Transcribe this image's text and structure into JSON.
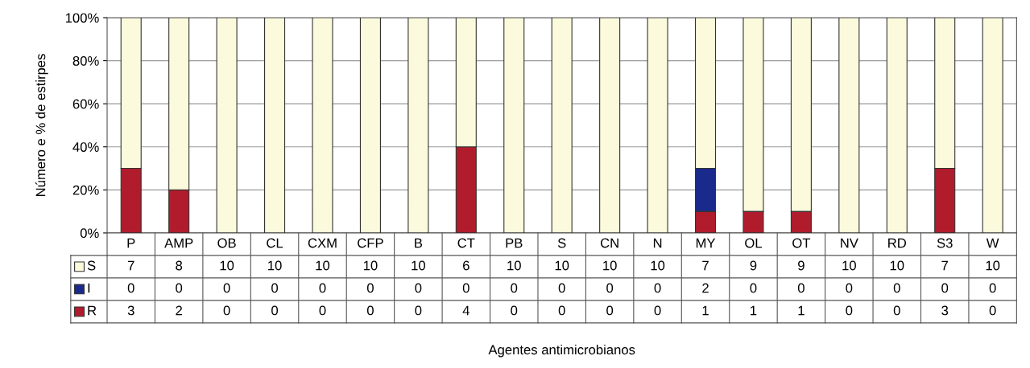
{
  "chart_data": {
    "type": "bar",
    "stacked": true,
    "ylabel": "Número e % de estirpes",
    "categories": [
      "P",
      "AMP",
      "OB",
      "CL",
      "CXM",
      "CFP",
      "B",
      "CT",
      "PB",
      "S",
      "CN",
      "N",
      "MY",
      "OL",
      "OT",
      "NV",
      "RD",
      "S3",
      "W"
    ],
    "series": [
      {
        "name": "R",
        "color": "#b01c2c",
        "values": [
          30,
          20,
          0,
          0,
          0,
          0,
          0,
          40,
          0,
          0,
          0,
          0,
          10,
          10,
          10,
          0,
          0,
          30,
          0
        ]
      },
      {
        "name": "I",
        "color": "#1a2a8c",
        "values": [
          0,
          0,
          0,
          0,
          0,
          0,
          0,
          0,
          0,
          0,
          0,
          0,
          20,
          0,
          0,
          0,
          0,
          0,
          0
        ]
      },
      {
        "name": "S",
        "color": "#fcfadc",
        "values": [
          70,
          80,
          100,
          100,
          100,
          100,
          100,
          60,
          100,
          100,
          100,
          100,
          70,
          90,
          90,
          100,
          100,
          70,
          100
        ]
      }
    ],
    "annotations": [
      "7",
      "8",
      "10",
      "10",
      "10",
      "10",
      "10",
      "6",
      "10",
      "10",
      "10",
      "10",
      "7",
      "9",
      "9",
      "10",
      "10",
      "7",
      "10",
      "0",
      "0",
      "0",
      "0",
      "0",
      "0",
      "0",
      "0",
      "0",
      "0",
      "0",
      "0",
      "2",
      "0",
      "0",
      "0",
      "0",
      "0",
      "0",
      "3",
      "2",
      "0",
      "0",
      "0",
      "0",
      "0",
      "4",
      "0",
      "0",
      "0",
      "0",
      "1",
      "1",
      "1",
      "0",
      "0",
      "3",
      "0",
      "Agentes antimicrobianos"
    ],
    "ylim": [
      0,
      100
    ],
    "yticks": [
      {
        "value": 0,
        "label": "0%"
      },
      {
        "value": 20,
        "label": "20%"
      },
      {
        "value": 40,
        "label": "40%"
      },
      {
        "value": 60,
        "label": "60%"
      },
      {
        "value": 80,
        "label": "80%"
      },
      {
        "value": 100,
        "label": "100%"
      }
    ],
    "grid": "y",
    "legend": "bottom"
  }
}
